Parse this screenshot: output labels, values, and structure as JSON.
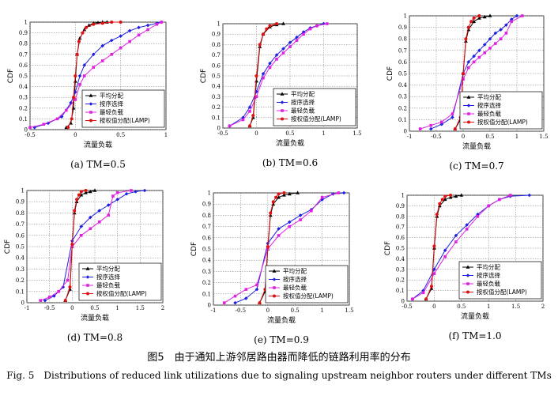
{
  "figure": {
    "caption_cn": "图5　由于通知上游邻居路由器而降低的链路利用率的分布",
    "caption_en": "Fig. 5　Distributions of reduced link utilizations due to signaling upstream neighbor routers under different TMs"
  },
  "legend_entries": [
    "平均分配",
    "按序选择",
    "最轻负载",
    "按权值分配(LAMP)"
  ],
  "series_colors": [
    "#000000",
    "#1f1fe0",
    "#e020e0",
    "#e01010"
  ],
  "chart_data": [
    {
      "type": "line",
      "caption": "(a)  TM=0.5",
      "xlabel": "流量负载",
      "ylabel": "CDF",
      "xlim": [
        -0.5,
        1
      ],
      "ylim": [
        0,
        1
      ],
      "xticks": [
        "-0.5",
        "0",
        "0.5",
        "1"
      ],
      "yticks": [
        "0",
        "0.1",
        "0.2",
        "0.3",
        "0.4",
        "0.5",
        "0.6",
        "0.7",
        "0.8",
        "0.9",
        "1"
      ],
      "legend_position": "bottom-right",
      "grid": true,
      "series": [
        {
          "name": "平均分配",
          "x": [
            -0.1,
            -0.05,
            -0.02,
            0,
            0.02,
            0.05,
            0.1,
            0.15,
            0.2,
            0.25,
            0.3,
            0.35
          ],
          "y": [
            0.02,
            0.06,
            0.2,
            0.45,
            0.7,
            0.85,
            0.93,
            0.97,
            0.99,
            0.995,
            1,
            1
          ]
        },
        {
          "name": "按序选择",
          "x": [
            -0.45,
            -0.3,
            -0.15,
            -0.05,
            0,
            0.05,
            0.1,
            0.2,
            0.3,
            0.4,
            0.5,
            0.6,
            0.7,
            0.8,
            0.9,
            0.95
          ],
          "y": [
            0.02,
            0.06,
            0.12,
            0.25,
            0.35,
            0.5,
            0.6,
            0.7,
            0.78,
            0.83,
            0.87,
            0.92,
            0.95,
            0.97,
            0.99,
            1
          ]
        },
        {
          "name": "最轻负载",
          "x": [
            -0.5,
            -0.35,
            -0.2,
            -0.1,
            0,
            0.05,
            0.1,
            0.2,
            0.3,
            0.4,
            0.5,
            0.6,
            0.7,
            0.8,
            0.9,
            0.95
          ],
          "y": [
            0.02,
            0.05,
            0.1,
            0.18,
            0.28,
            0.42,
            0.5,
            0.58,
            0.64,
            0.7,
            0.76,
            0.82,
            0.88,
            0.93,
            0.98,
            1
          ]
        },
        {
          "name": "按权值分配(LAMP)",
          "x": [
            -0.08,
            -0.04,
            -0.02,
            0,
            0.02,
            0.04,
            0.08,
            0.12,
            0.2,
            0.3,
            0.4,
            0.5
          ],
          "y": [
            0.02,
            0.1,
            0.3,
            0.5,
            0.7,
            0.82,
            0.9,
            0.95,
            0.98,
            0.99,
            1,
            1
          ]
        }
      ]
    },
    {
      "type": "line",
      "caption": "(b)  TM=0.6",
      "xlabel": "流量负载",
      "ylabel": "CDF",
      "xlim": [
        -0.5,
        1.5
      ],
      "ylim": [
        0,
        1
      ],
      "xticks": [
        "-0.5",
        "0",
        "0.5",
        "1",
        "1.5"
      ],
      "yticks": [
        "0",
        "0.1",
        "0.2",
        "0.3",
        "0.4",
        "0.5",
        "0.6",
        "0.7",
        "0.8",
        "0.9",
        "1"
      ],
      "legend_position": "bottom-right",
      "grid": true,
      "series": [
        {
          "name": "平均分配",
          "x": [
            -0.1,
            -0.05,
            0,
            0.05,
            0.1,
            0.2,
            0.3,
            0.4
          ],
          "y": [
            0.02,
            0.1,
            0.45,
            0.78,
            0.9,
            0.97,
            0.99,
            1
          ]
        },
        {
          "name": "按序选择",
          "x": [
            -0.4,
            -0.2,
            -0.1,
            0,
            0.1,
            0.2,
            0.3,
            0.4,
            0.5,
            0.6,
            0.7,
            0.8,
            0.9,
            1.0
          ],
          "y": [
            0.02,
            0.1,
            0.2,
            0.35,
            0.52,
            0.62,
            0.7,
            0.76,
            0.82,
            0.87,
            0.92,
            0.96,
            0.98,
            1
          ]
        },
        {
          "name": "最轻负载",
          "x": [
            -0.4,
            -0.2,
            -0.1,
            0,
            0.1,
            0.2,
            0.3,
            0.4,
            0.5,
            0.6,
            0.7,
            0.8,
            0.9,
            1.05
          ],
          "y": [
            0.02,
            0.08,
            0.16,
            0.3,
            0.48,
            0.58,
            0.66,
            0.72,
            0.78,
            0.84,
            0.9,
            0.95,
            0.98,
            1
          ]
        },
        {
          "name": "按权值分配(LAMP)",
          "x": [
            -0.1,
            -0.05,
            0,
            0.05,
            0.1,
            0.15,
            0.2,
            0.3
          ],
          "y": [
            0.02,
            0.12,
            0.5,
            0.8,
            0.9,
            0.95,
            0.98,
            1
          ]
        }
      ]
    },
    {
      "type": "line",
      "caption": "(c)  TM=0.7",
      "xlabel": "流量负载",
      "ylabel": "CDF",
      "xlim": [
        -1,
        1.5
      ],
      "ylim": [
        0,
        1
      ],
      "xticks": [
        "-1",
        "-0.5",
        "0",
        "0.5",
        "1",
        "1.5"
      ],
      "yticks": [
        "0",
        "0.1",
        "0.2",
        "0.3",
        "0.4",
        "0.5",
        "0.6",
        "0.7",
        "0.8",
        "0.9",
        "1"
      ],
      "legend_position": "bottom-right",
      "grid": true,
      "series": [
        {
          "name": "平均分配",
          "x": [
            -0.15,
            -0.05,
            0,
            0.05,
            0.1,
            0.2,
            0.3,
            0.4,
            0.5
          ],
          "y": [
            0.02,
            0.1,
            0.5,
            0.78,
            0.88,
            0.95,
            0.98,
            0.99,
            1
          ]
        },
        {
          "name": "按序选择",
          "x": [
            -0.6,
            -0.4,
            -0.2,
            0,
            0.1,
            0.2,
            0.3,
            0.4,
            0.5,
            0.6,
            0.7,
            0.8,
            0.9,
            1.0
          ],
          "y": [
            0.02,
            0.06,
            0.12,
            0.5,
            0.6,
            0.65,
            0.7,
            0.75,
            0.8,
            0.85,
            0.88,
            0.92,
            0.97,
            1
          ]
        },
        {
          "name": "最轻负载",
          "x": [
            -0.8,
            -0.6,
            -0.4,
            -0.2,
            0,
            0.1,
            0.2,
            0.3,
            0.4,
            0.5,
            0.6,
            0.7,
            0.8,
            0.9,
            1.1
          ],
          "y": [
            0.02,
            0.05,
            0.08,
            0.15,
            0.45,
            0.55,
            0.6,
            0.64,
            0.68,
            0.72,
            0.76,
            0.8,
            0.85,
            0.95,
            1
          ]
        },
        {
          "name": "按权值分配(LAMP)",
          "x": [
            -0.15,
            -0.05,
            0,
            0.05,
            0.1,
            0.15,
            0.2,
            0.3
          ],
          "y": [
            0.02,
            0.12,
            0.5,
            0.8,
            0.9,
            0.95,
            0.98,
            1
          ]
        }
      ]
    },
    {
      "type": "line",
      "caption": "(d)  TM=0.8",
      "xlabel": "流量负载",
      "ylabel": "CDF",
      "xlim": [
        -1,
        2
      ],
      "ylim": [
        0,
        1
      ],
      "xticks": [
        "-1",
        "-0.5",
        "0",
        "0.5",
        "1",
        "1.5",
        "2"
      ],
      "yticks": [
        "0",
        "0.1",
        "0.2",
        "0.3",
        "0.4",
        "0.5",
        "0.6",
        "0.7",
        "0.8",
        "0.9",
        "1"
      ],
      "legend_position": "bottom-right",
      "grid": true,
      "series": [
        {
          "name": "平均分配",
          "x": [
            -0.15,
            -0.05,
            0,
            0.05,
            0.1,
            0.2,
            0.3,
            0.4,
            0.5
          ],
          "y": [
            0.02,
            0.12,
            0.5,
            0.8,
            0.9,
            0.96,
            0.98,
            0.99,
            1
          ]
        },
        {
          "name": "按序选择",
          "x": [
            -0.6,
            -0.4,
            -0.2,
            0,
            0.2,
            0.4,
            0.6,
            0.8,
            1.0,
            1.2,
            1.4,
            1.6
          ],
          "y": [
            0.02,
            0.06,
            0.14,
            0.55,
            0.68,
            0.76,
            0.82,
            0.87,
            0.92,
            0.97,
            0.99,
            1
          ]
        },
        {
          "name": "最轻负载",
          "x": [
            -0.7,
            -0.5,
            -0.3,
            -0.1,
            0,
            0.2,
            0.4,
            0.6,
            0.8,
            0.9,
            1.0,
            1.3
          ],
          "y": [
            0.02,
            0.05,
            0.1,
            0.2,
            0.5,
            0.6,
            0.66,
            0.72,
            0.78,
            0.95,
            0.98,
            1
          ]
        },
        {
          "name": "按权值分配(LAMP)",
          "x": [
            -0.15,
            -0.05,
            0,
            0.05,
            0.1,
            0.15,
            0.2,
            0.3
          ],
          "y": [
            0.02,
            0.14,
            0.52,
            0.82,
            0.92,
            0.96,
            0.99,
            1
          ]
        }
      ]
    },
    {
      "type": "line",
      "caption": "(e)  TM=0.9",
      "xlabel": "流量负载",
      "ylabel": "CDF",
      "xlim": [
        -1,
        1.5
      ],
      "ylim": [
        0,
        1
      ],
      "xticks": [
        "-1",
        "-0.5",
        "0",
        "0.5",
        "1",
        "1.5"
      ],
      "yticks": [
        "0",
        "0.1",
        "0.2",
        "0.3",
        "0.4",
        "0.5",
        "0.6",
        "0.7",
        "0.8",
        "0.9",
        "1"
      ],
      "legend_position": "bottom-right",
      "grid": true,
      "series": [
        {
          "name": "平均分配",
          "x": [
            -0.15,
            -0.05,
            0,
            0.05,
            0.1,
            0.2,
            0.3,
            0.4,
            0.55
          ],
          "y": [
            0.02,
            0.12,
            0.5,
            0.8,
            0.9,
            0.96,
            0.98,
            0.99,
            1
          ]
        },
        {
          "name": "按序选择",
          "x": [
            -0.6,
            -0.4,
            -0.2,
            0,
            0.2,
            0.4,
            0.6,
            0.8,
            1.0,
            1.2,
            1.4
          ],
          "y": [
            0.02,
            0.06,
            0.14,
            0.55,
            0.68,
            0.74,
            0.8,
            0.85,
            0.94,
            0.99,
            1
          ]
        },
        {
          "name": "最轻负载",
          "x": [
            -0.8,
            -0.6,
            -0.4,
            -0.2,
            0,
            0.2,
            0.4,
            0.6,
            0.8,
            1.0,
            1.3
          ],
          "y": [
            0.02,
            0.08,
            0.14,
            0.18,
            0.5,
            0.62,
            0.7,
            0.76,
            0.84,
            0.96,
            1
          ]
        },
        {
          "name": "按权值分配(LAMP)",
          "x": [
            -0.15,
            -0.05,
            0,
            0.05,
            0.1,
            0.15,
            0.2,
            0.3
          ],
          "y": [
            0.02,
            0.14,
            0.52,
            0.82,
            0.92,
            0.96,
            0.99,
            1
          ]
        }
      ]
    },
    {
      "type": "line",
      "caption": "(f)  TM=1.0",
      "xlabel": "流量负载",
      "ylabel": "CDF",
      "xlim": [
        -0.5,
        2
      ],
      "ylim": [
        0,
        1
      ],
      "xticks": [
        "-0.5",
        "0",
        "0.5",
        "1",
        "1.5",
        "2"
      ],
      "yticks": [
        "0",
        "0.1",
        "0.2",
        "0.3",
        "0.4",
        "0.5",
        "0.6",
        "0.7",
        "0.8",
        "0.9",
        "1"
      ],
      "legend_position": "bottom-right",
      "grid": true,
      "series": [
        {
          "name": "平均分配",
          "x": [
            -0.15,
            -0.05,
            0,
            0.05,
            0.1,
            0.2,
            0.3,
            0.4,
            0.5
          ],
          "y": [
            0.02,
            0.12,
            0.5,
            0.8,
            0.9,
            0.96,
            0.98,
            0.99,
            1
          ]
        },
        {
          "name": "按序选择",
          "x": [
            -0.4,
            -0.2,
            0,
            0.2,
            0.4,
            0.6,
            0.8,
            1.0,
            1.2,
            1.4,
            1.75
          ],
          "y": [
            0.02,
            0.1,
            0.3,
            0.48,
            0.62,
            0.72,
            0.82,
            0.9,
            0.96,
            0.99,
            1
          ]
        },
        {
          "name": "最轻负载",
          "x": [
            -0.4,
            -0.2,
            0,
            0.2,
            0.4,
            0.6,
            0.8,
            1.0,
            1.2,
            1.4
          ],
          "y": [
            0.02,
            0.08,
            0.26,
            0.42,
            0.56,
            0.68,
            0.8,
            0.9,
            0.96,
            1
          ]
        },
        {
          "name": "按权值分配(LAMP)",
          "x": [
            -0.15,
            -0.05,
            0,
            0.05,
            0.1,
            0.15,
            0.2,
            0.3
          ],
          "y": [
            0.02,
            0.14,
            0.52,
            0.82,
            0.92,
            0.96,
            0.99,
            1
          ]
        }
      ]
    }
  ]
}
